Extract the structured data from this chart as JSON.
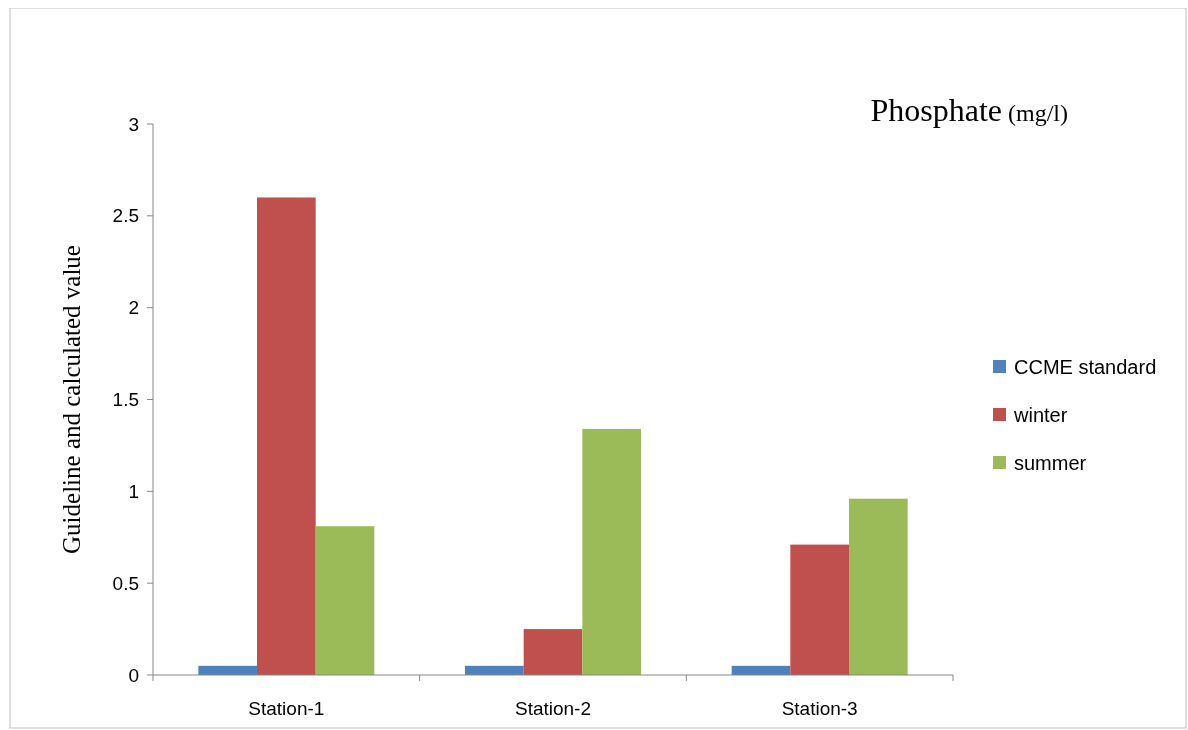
{
  "chart_data": {
    "type": "bar",
    "title": "Phosphate (mg/l)",
    "ylabel": "Guideline and calculated  value",
    "categories": [
      "Station-1",
      "Station-2",
      "Station-3"
    ],
    "series": [
      {
        "name": "CCME standard",
        "color": "#4f81bd",
        "values": [
          0.05,
          0.05,
          0.05
        ]
      },
      {
        "name": "winter",
        "color": "#c0504d",
        "values": [
          2.6,
          0.25,
          0.71
        ]
      },
      {
        "name": "summer",
        "color": "#9bbb59",
        "values": [
          0.81,
          1.34,
          0.96
        ]
      }
    ],
    "ylim": [
      0,
      3
    ],
    "yticks": [
      0,
      0.5,
      1,
      1.5,
      2,
      2.5,
      3
    ],
    "grid": false,
    "legend": "right"
  }
}
